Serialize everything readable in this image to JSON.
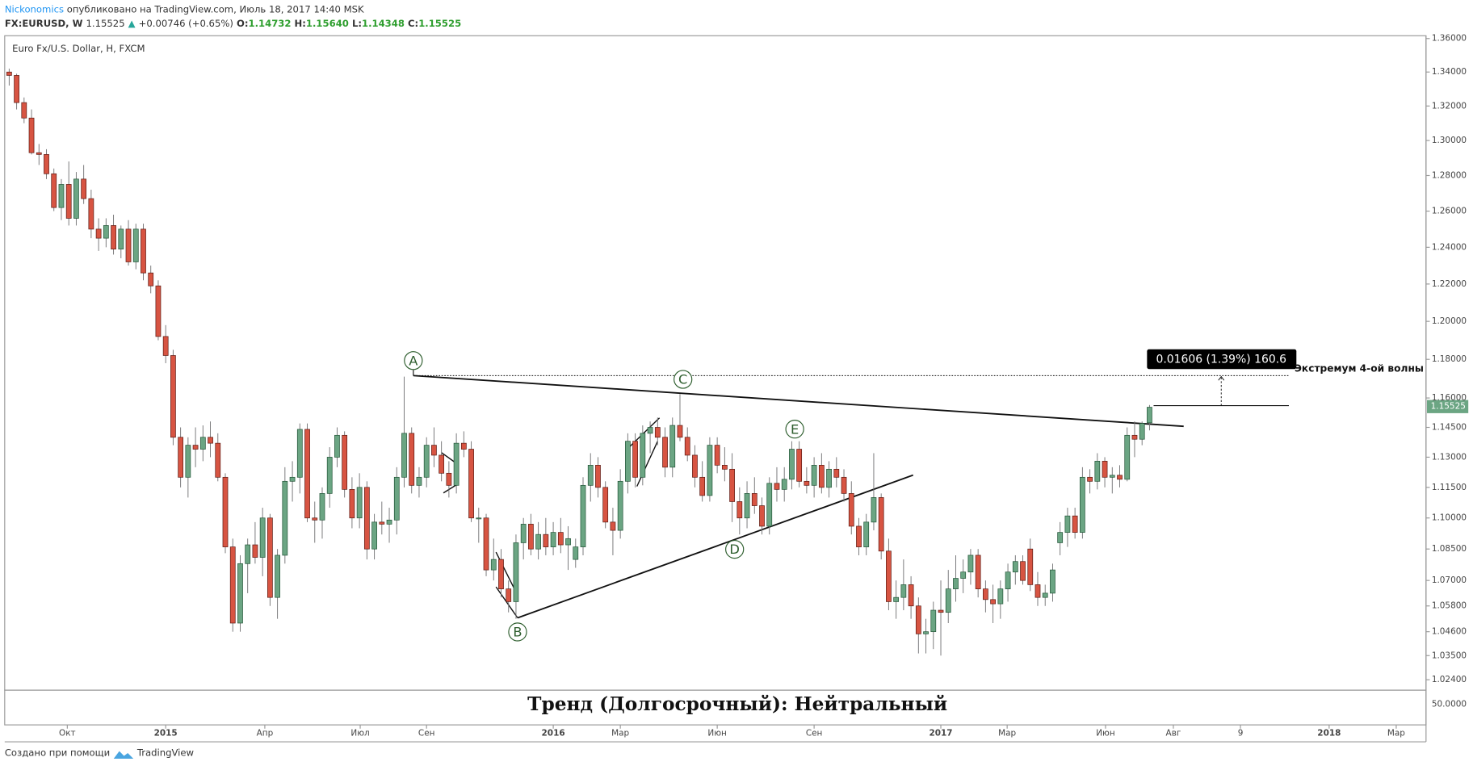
{
  "header": {
    "author": "Nickonomics",
    "published": "опубликовано на TradingView.com, Июль 18, 2017 14:40 MSK",
    "symbol": "FX:EURUSD, W",
    "price": "1.15525",
    "arrow": "▲",
    "change": "+0.00746 (+0.65%)",
    "o_label": "O:",
    "o": "1.14732",
    "h_label": "H:",
    "h": "1.15640",
    "l_label": "L:",
    "l": "1.14348",
    "c_label": "C:",
    "c": "1.15525"
  },
  "chart_data": {
    "type": "candlestick",
    "title": "Euro Fx/U.S. Dollar, H, FXCM",
    "log": true,
    "grid": false,
    "up_color": "#6ba583",
    "down_color": "#d75442",
    "candles": [
      [
        1.34,
        1.342,
        1.332,
        1.338
      ],
      [
        1.338,
        1.339,
        1.318,
        1.322
      ],
      [
        1.322,
        1.325,
        1.31,
        1.313
      ],
      [
        1.313,
        1.318,
        1.292,
        1.293
      ],
      [
        1.293,
        1.298,
        1.286,
        1.292
      ],
      [
        1.292,
        1.295,
        1.278,
        1.281
      ],
      [
        1.281,
        1.284,
        1.26,
        1.262
      ],
      [
        1.262,
        1.278,
        1.255,
        1.275
      ],
      [
        1.275,
        1.288,
        1.252,
        1.256
      ],
      [
        1.256,
        1.282,
        1.252,
        1.278
      ],
      [
        1.278,
        1.286,
        1.264,
        1.267
      ],
      [
        1.267,
        1.272,
        1.245,
        1.25
      ],
      [
        1.25,
        1.256,
        1.238,
        1.245
      ],
      [
        1.245,
        1.256,
        1.24,
        1.252
      ],
      [
        1.252,
        1.258,
        1.236,
        1.239
      ],
      [
        1.239,
        1.252,
        1.234,
        1.25
      ],
      [
        1.25,
        1.255,
        1.23,
        1.232
      ],
      [
        1.232,
        1.253,
        1.228,
        1.25
      ],
      [
        1.25,
        1.253,
        1.222,
        1.226
      ],
      [
        1.226,
        1.23,
        1.215,
        1.219
      ],
      [
        1.219,
        1.222,
        1.19,
        1.192
      ],
      [
        1.192,
        1.198,
        1.178,
        1.182
      ],
      [
        1.182,
        1.185,
        1.136,
        1.14
      ],
      [
        1.14,
        1.145,
        1.115,
        1.12
      ],
      [
        1.12,
        1.14,
        1.11,
        1.136
      ],
      [
        1.136,
        1.145,
        1.125,
        1.134
      ],
      [
        1.134,
        1.146,
        1.128,
        1.14
      ],
      [
        1.14,
        1.148,
        1.13,
        1.137
      ],
      [
        1.137,
        1.142,
        1.118,
        1.12
      ],
      [
        1.12,
        1.122,
        1.083,
        1.086
      ],
      [
        1.086,
        1.09,
        1.046,
        1.05
      ],
      [
        1.05,
        1.082,
        1.046,
        1.078
      ],
      [
        1.078,
        1.09,
        1.064,
        1.087
      ],
      [
        1.087,
        1.098,
        1.078,
        1.081
      ],
      [
        1.081,
        1.105,
        1.072,
        1.1
      ],
      [
        1.1,
        1.102,
        1.058,
        1.062
      ],
      [
        1.062,
        1.085,
        1.052,
        1.082
      ],
      [
        1.082,
        1.125,
        1.078,
        1.118
      ],
      [
        1.118,
        1.128,
        1.108,
        1.12
      ],
      [
        1.12,
        1.147,
        1.112,
        1.144
      ],
      [
        1.144,
        1.147,
        1.098,
        1.1
      ],
      [
        1.1,
        1.108,
        1.088,
        1.099
      ],
      [
        1.099,
        1.115,
        1.09,
        1.112
      ],
      [
        1.112,
        1.135,
        1.105,
        1.13
      ],
      [
        1.13,
        1.145,
        1.125,
        1.141
      ],
      [
        1.141,
        1.143,
        1.11,
        1.114
      ],
      [
        1.114,
        1.12,
        1.095,
        1.1
      ],
      [
        1.1,
        1.122,
        1.095,
        1.115
      ],
      [
        1.115,
        1.118,
        1.08,
        1.085
      ],
      [
        1.085,
        1.102,
        1.08,
        1.098
      ],
      [
        1.098,
        1.108,
        1.092,
        1.097
      ],
      [
        1.097,
        1.105,
        1.088,
        1.099
      ],
      [
        1.099,
        1.125,
        1.092,
        1.12
      ],
      [
        1.12,
        1.171,
        1.115,
        1.142
      ],
      [
        1.142,
        1.145,
        1.112,
        1.116
      ],
      [
        1.116,
        1.125,
        1.11,
        1.12
      ],
      [
        1.12,
        1.14,
        1.115,
        1.136
      ],
      [
        1.136,
        1.145,
        1.125,
        1.131
      ],
      [
        1.131,
        1.138,
        1.118,
        1.122
      ],
      [
        1.122,
        1.128,
        1.11,
        1.116
      ],
      [
        1.116,
        1.142,
        1.112,
        1.137
      ],
      [
        1.137,
        1.143,
        1.13,
        1.134
      ],
      [
        1.134,
        1.138,
        1.098,
        1.1
      ],
      [
        1.1,
        1.105,
        1.088,
        1.1
      ],
      [
        1.1,
        1.102,
        1.072,
        1.075
      ],
      [
        1.075,
        1.09,
        1.07,
        1.08
      ],
      [
        1.08,
        1.085,
        1.062,
        1.066
      ],
      [
        1.066,
        1.07,
        1.055,
        1.06
      ],
      [
        1.06,
        1.092,
        1.052,
        1.088
      ],
      [
        1.088,
        1.1,
        1.08,
        1.097
      ],
      [
        1.097,
        1.102,
        1.082,
        1.085
      ],
      [
        1.085,
        1.098,
        1.08,
        1.092
      ],
      [
        1.092,
        1.1,
        1.082,
        1.086
      ],
      [
        1.086,
        1.098,
        1.082,
        1.093
      ],
      [
        1.093,
        1.1,
        1.083,
        1.087
      ],
      [
        1.087,
        1.096,
        1.075,
        1.09
      ],
      [
        1.08,
        1.09,
        1.076,
        1.086
      ],
      [
        1.086,
        1.12,
        1.082,
        1.116
      ],
      [
        1.116,
        1.132,
        1.108,
        1.126
      ],
      [
        1.126,
        1.13,
        1.11,
        1.115
      ],
      [
        1.115,
        1.118,
        1.095,
        1.098
      ],
      [
        1.098,
        1.105,
        1.082,
        1.094
      ],
      [
        1.094,
        1.124,
        1.09,
        1.118
      ],
      [
        1.118,
        1.142,
        1.112,
        1.138
      ],
      [
        1.138,
        1.142,
        1.115,
        1.12
      ],
      [
        1.12,
        1.146,
        1.116,
        1.142
      ],
      [
        1.142,
        1.148,
        1.132,
        1.145
      ],
      [
        1.145,
        1.15,
        1.136,
        1.14
      ],
      [
        1.14,
        1.145,
        1.12,
        1.125
      ],
      [
        1.125,
        1.15,
        1.12,
        1.146
      ],
      [
        1.146,
        1.162,
        1.138,
        1.14
      ],
      [
        1.14,
        1.145,
        1.128,
        1.131
      ],
      [
        1.131,
        1.136,
        1.115,
        1.12
      ],
      [
        1.12,
        1.128,
        1.108,
        1.111
      ],
      [
        1.111,
        1.14,
        1.108,
        1.136
      ],
      [
        1.136,
        1.14,
        1.122,
        1.126
      ],
      [
        1.126,
        1.135,
        1.118,
        1.124
      ],
      [
        1.124,
        1.132,
        1.098,
        1.108
      ],
      [
        1.108,
        1.115,
        1.092,
        1.1
      ],
      [
        1.1,
        1.118,
        1.095,
        1.112
      ],
      [
        1.112,
        1.12,
        1.102,
        1.106
      ],
      [
        1.106,
        1.11,
        1.092,
        1.096
      ],
      [
        1.096,
        1.12,
        1.092,
        1.117
      ],
      [
        1.117,
        1.125,
        1.108,
        1.114
      ],
      [
        1.114,
        1.125,
        1.108,
        1.119
      ],
      [
        1.119,
        1.138,
        1.114,
        1.134
      ],
      [
        1.134,
        1.138,
        1.115,
        1.118
      ],
      [
        1.118,
        1.125,
        1.112,
        1.116
      ],
      [
        1.116,
        1.13,
        1.11,
        1.126
      ],
      [
        1.126,
        1.132,
        1.112,
        1.115
      ],
      [
        1.115,
        1.128,
        1.11,
        1.124
      ],
      [
        1.124,
        1.13,
        1.115,
        1.12
      ],
      [
        1.12,
        1.124,
        1.108,
        1.112
      ],
      [
        1.112,
        1.118,
        1.092,
        1.096
      ],
      [
        1.096,
        1.1,
        1.082,
        1.086
      ],
      [
        1.086,
        1.102,
        1.082,
        1.098
      ],
      [
        1.098,
        1.132,
        1.094,
        1.11
      ],
      [
        1.11,
        1.112,
        1.08,
        1.084
      ],
      [
        1.084,
        1.09,
        1.056,
        1.06
      ],
      [
        1.06,
        1.07,
        1.052,
        1.062
      ],
      [
        1.062,
        1.08,
        1.056,
        1.068
      ],
      [
        1.068,
        1.072,
        1.052,
        1.058
      ],
      [
        1.058,
        1.062,
        1.036,
        1.045
      ],
      [
        1.045,
        1.052,
        1.036,
        1.046
      ],
      [
        1.046,
        1.06,
        1.038,
        1.056
      ],
      [
        1.056,
        1.07,
        1.035,
        1.055
      ],
      [
        1.055,
        1.075,
        1.05,
        1.066
      ],
      [
        1.066,
        1.082,
        1.06,
        1.071
      ],
      [
        1.071,
        1.08,
        1.064,
        1.074
      ],
      [
        1.074,
        1.085,
        1.068,
        1.082
      ],
      [
        1.082,
        1.085,
        1.062,
        1.066
      ],
      [
        1.066,
        1.07,
        1.055,
        1.061
      ],
      [
        1.061,
        1.068,
        1.05,
        1.059
      ],
      [
        1.059,
        1.07,
        1.052,
        1.066
      ],
      [
        1.066,
        1.078,
        1.06,
        1.074
      ],
      [
        1.074,
        1.082,
        1.068,
        1.079
      ],
      [
        1.079,
        1.082,
        1.068,
        1.07
      ],
      [
        1.085,
        1.09,
        1.065,
        1.068
      ],
      [
        1.068,
        1.074,
        1.058,
        1.062
      ],
      [
        1.062,
        1.068,
        1.058,
        1.064
      ],
      [
        1.064,
        1.078,
        1.06,
        1.075
      ],
      [
        1.088,
        1.098,
        1.082,
        1.093
      ],
      [
        1.093,
        1.105,
        1.086,
        1.101
      ],
      [
        1.101,
        1.105,
        1.09,
        1.093
      ],
      [
        1.093,
        1.125,
        1.09,
        1.12
      ],
      [
        1.12,
        1.124,
        1.112,
        1.118
      ],
      [
        1.118,
        1.132,
        1.114,
        1.128
      ],
      [
        1.128,
        1.13,
        1.115,
        1.12
      ],
      [
        1.12,
        1.125,
        1.112,
        1.121
      ],
      [
        1.121,
        1.126,
        1.115,
        1.119
      ],
      [
        1.119,
        1.145,
        1.118,
        1.141
      ],
      [
        1.141,
        1.148,
        1.13,
        1.139
      ],
      [
        1.139,
        1.148,
        1.136,
        1.147
      ],
      [
        1.14732,
        1.1564,
        1.14348,
        1.15525
      ]
    ],
    "xlim": [
      -0.6,
      190.1
    ],
    "xticks": [
      {
        "value": 7.8,
        "label": "Окт"
      },
      {
        "value": 21,
        "label": "2015"
      },
      {
        "value": 34.3,
        "label": "Апр"
      },
      {
        "value": 47.1,
        "label": "Июл"
      },
      {
        "value": 56,
        "label": "Сен"
      },
      {
        "value": 73,
        "label": "2016"
      },
      {
        "value": 82,
        "label": "Мар"
      },
      {
        "value": 95,
        "label": "Июн"
      },
      {
        "value": 108,
        "label": "Сен"
      },
      {
        "value": 125,
        "label": "2017"
      },
      {
        "value": 133.9,
        "label": "Мар"
      },
      {
        "value": 147.1,
        "label": "Июн"
      },
      {
        "value": 156.2,
        "label": "Авг"
      },
      {
        "value": 165.2,
        "label": "9"
      },
      {
        "value": 177.1,
        "label": "2018"
      },
      {
        "value": 186.1,
        "label": "Мар"
      }
    ],
    "ylim": [
      1.0193,
      1.3617
    ],
    "yticks": [
      {
        "value": 1.36,
        "label": "1.36000"
      },
      {
        "value": 1.34,
        "label": "1.34000"
      },
      {
        "value": 1.32,
        "label": "1.32000"
      },
      {
        "value": 1.3,
        "label": "1.30000"
      },
      {
        "value": 1.28,
        "label": "1.28000"
      },
      {
        "value": 1.26,
        "label": "1.26000"
      },
      {
        "value": 1.24,
        "label": "1.24000"
      },
      {
        "value": 1.22,
        "label": "1.22000"
      },
      {
        "value": 1.2,
        "label": "1.20000"
      },
      {
        "value": 1.18,
        "label": "1.18000"
      },
      {
        "value": 1.16,
        "label": "1.16000"
      },
      {
        "value": 1.145,
        "label": "1.14500"
      },
      {
        "value": 1.13,
        "label": "1.13000"
      },
      {
        "value": 1.115,
        "label": "1.11500"
      },
      {
        "value": 1.1,
        "label": "1.10000"
      },
      {
        "value": 1.085,
        "label": "1.08500"
      },
      {
        "value": 1.07,
        "label": "1.07000"
      },
      {
        "value": 1.058,
        "label": "1.05800"
      },
      {
        "value": 1.046,
        "label": "1.04600"
      },
      {
        "value": 1.035,
        "label": "1.03500"
      },
      {
        "value": 1.024,
        "label": "1.02400"
      }
    ],
    "wave_labels": [
      "A",
      "B",
      "C",
      "D",
      "E"
    ],
    "measure": "0.01606 (1.39%) 160.6",
    "note": "Экстремум 4-ой волны"
  },
  "indicator": {
    "text": "Тренд (Долгосрочный): Нейтральный",
    "axis_label": "50.0000"
  },
  "footer": {
    "text": "Создано при помощи",
    "brand": "TradingView"
  }
}
